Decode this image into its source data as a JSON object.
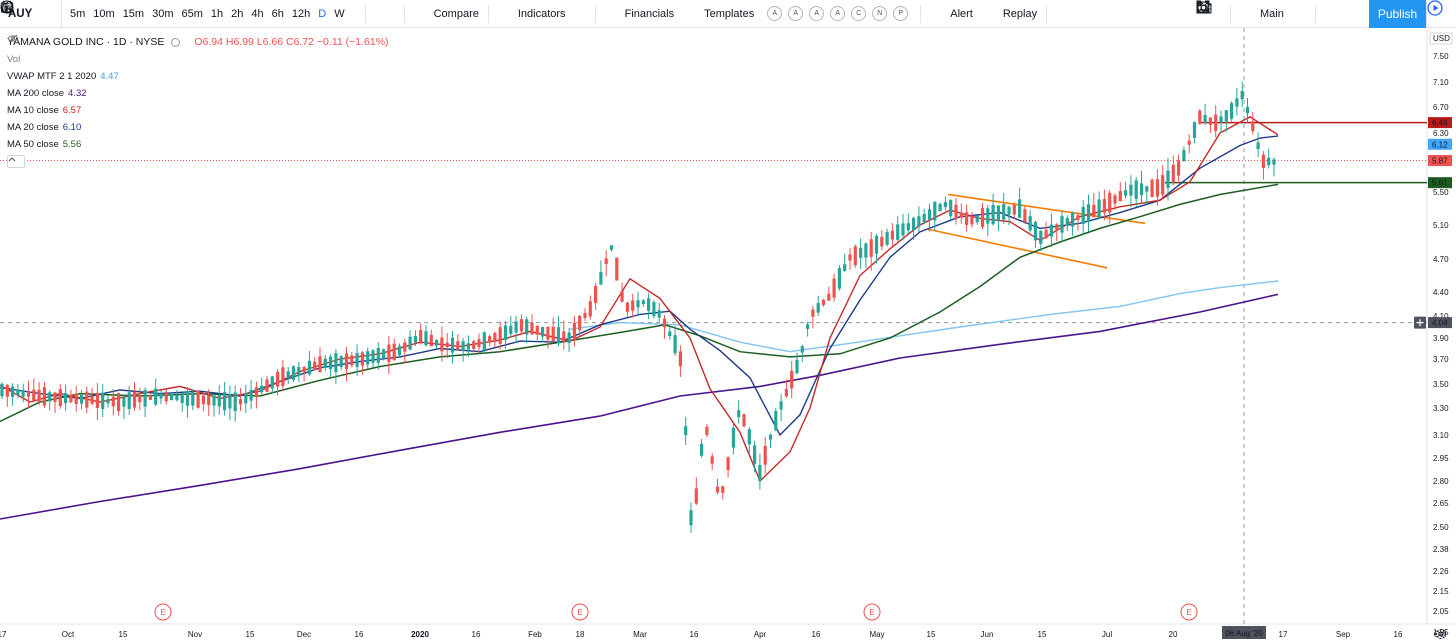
{
  "toolbar": {
    "symbol": "AUY",
    "intervals": [
      "5m",
      "10m",
      "15m",
      "30m",
      "65m",
      "1h",
      "2h",
      "4h",
      "6h",
      "12h",
      "D",
      "W"
    ],
    "active_interval": "D",
    "compare": "Compare",
    "indicators": "Indicators",
    "financials": "Financials",
    "templates": "Templates",
    "alert_circles": [
      "A",
      "A",
      "A",
      "A",
      "C",
      "N",
      "P"
    ],
    "alert": "Alert",
    "replay": "Replay",
    "layout": "Main",
    "publish": "Publish"
  },
  "legend": {
    "title": "YAMANA GOLD INC · 1D · NYSE",
    "ohlc": "O6.94  H6.99  L6.66  C6.72  −0.11 (−1.61%)",
    "vol": "Vol",
    "studies": [
      {
        "label": "VWAP MTF 2 1 2020",
        "value": "4.47",
        "color": "#42a5f5"
      },
      {
        "label": "MA 200 close",
        "value": "4.32",
        "color": "#4a148c"
      },
      {
        "label": "MA 10 close",
        "value": "6.57",
        "color": "#c62828"
      },
      {
        "label": "MA 20 close",
        "value": "6.10",
        "color": "#1e3a8a"
      },
      {
        "label": "MA 50 close",
        "value": "5.56",
        "color": "#1b5e20"
      }
    ]
  },
  "price_axis": {
    "currency": "USD",
    "ticks": [
      "7.50",
      "7.10",
      "6.70",
      "6.30",
      "5.90",
      "5.50",
      "5.10",
      "4.70",
      "4.40",
      "4.10",
      "3.90",
      "3.70",
      "3.50",
      "3.30",
      "3.10",
      "2.95",
      "2.80",
      "2.65",
      "2.50",
      "2.38",
      "2.26",
      "2.15",
      "2.05",
      "1.95"
    ],
    "badges": [
      {
        "label": "6.46",
        "color": "#b71c1c"
      },
      {
        "label": "6.12",
        "color": "#42a5f5"
      },
      {
        "label": "5.87",
        "color": "#ef5350"
      },
      {
        "label": "5.61",
        "color": "#1b5e20"
      },
      {
        "label": "4.04",
        "color": "#50535e"
      }
    ]
  },
  "time_axis": {
    "ticks": [
      "17",
      "Oct",
      "15",
      "Nov",
      "15",
      "Dec",
      "16",
      "2020",
      "16",
      "Feb",
      "18",
      "Mar",
      "16",
      "Apr",
      "16",
      "May",
      "15",
      "Jun",
      "15",
      "Jul",
      "20",
      "Aug",
      "17",
      "Sep",
      "16",
      "Oct"
    ],
    "crosshair_date": "06 Aug '20"
  },
  "earnings_marker": "E",
  "colors": {
    "up": "#26a69a",
    "down": "#ef5350",
    "ma10": "#c62828",
    "ma20": "#1e3a8a",
    "ma50": "#1b5e20",
    "ma200": "#4a148c",
    "vwap": "#81c4f0",
    "channel": "#f57c00"
  }
}
